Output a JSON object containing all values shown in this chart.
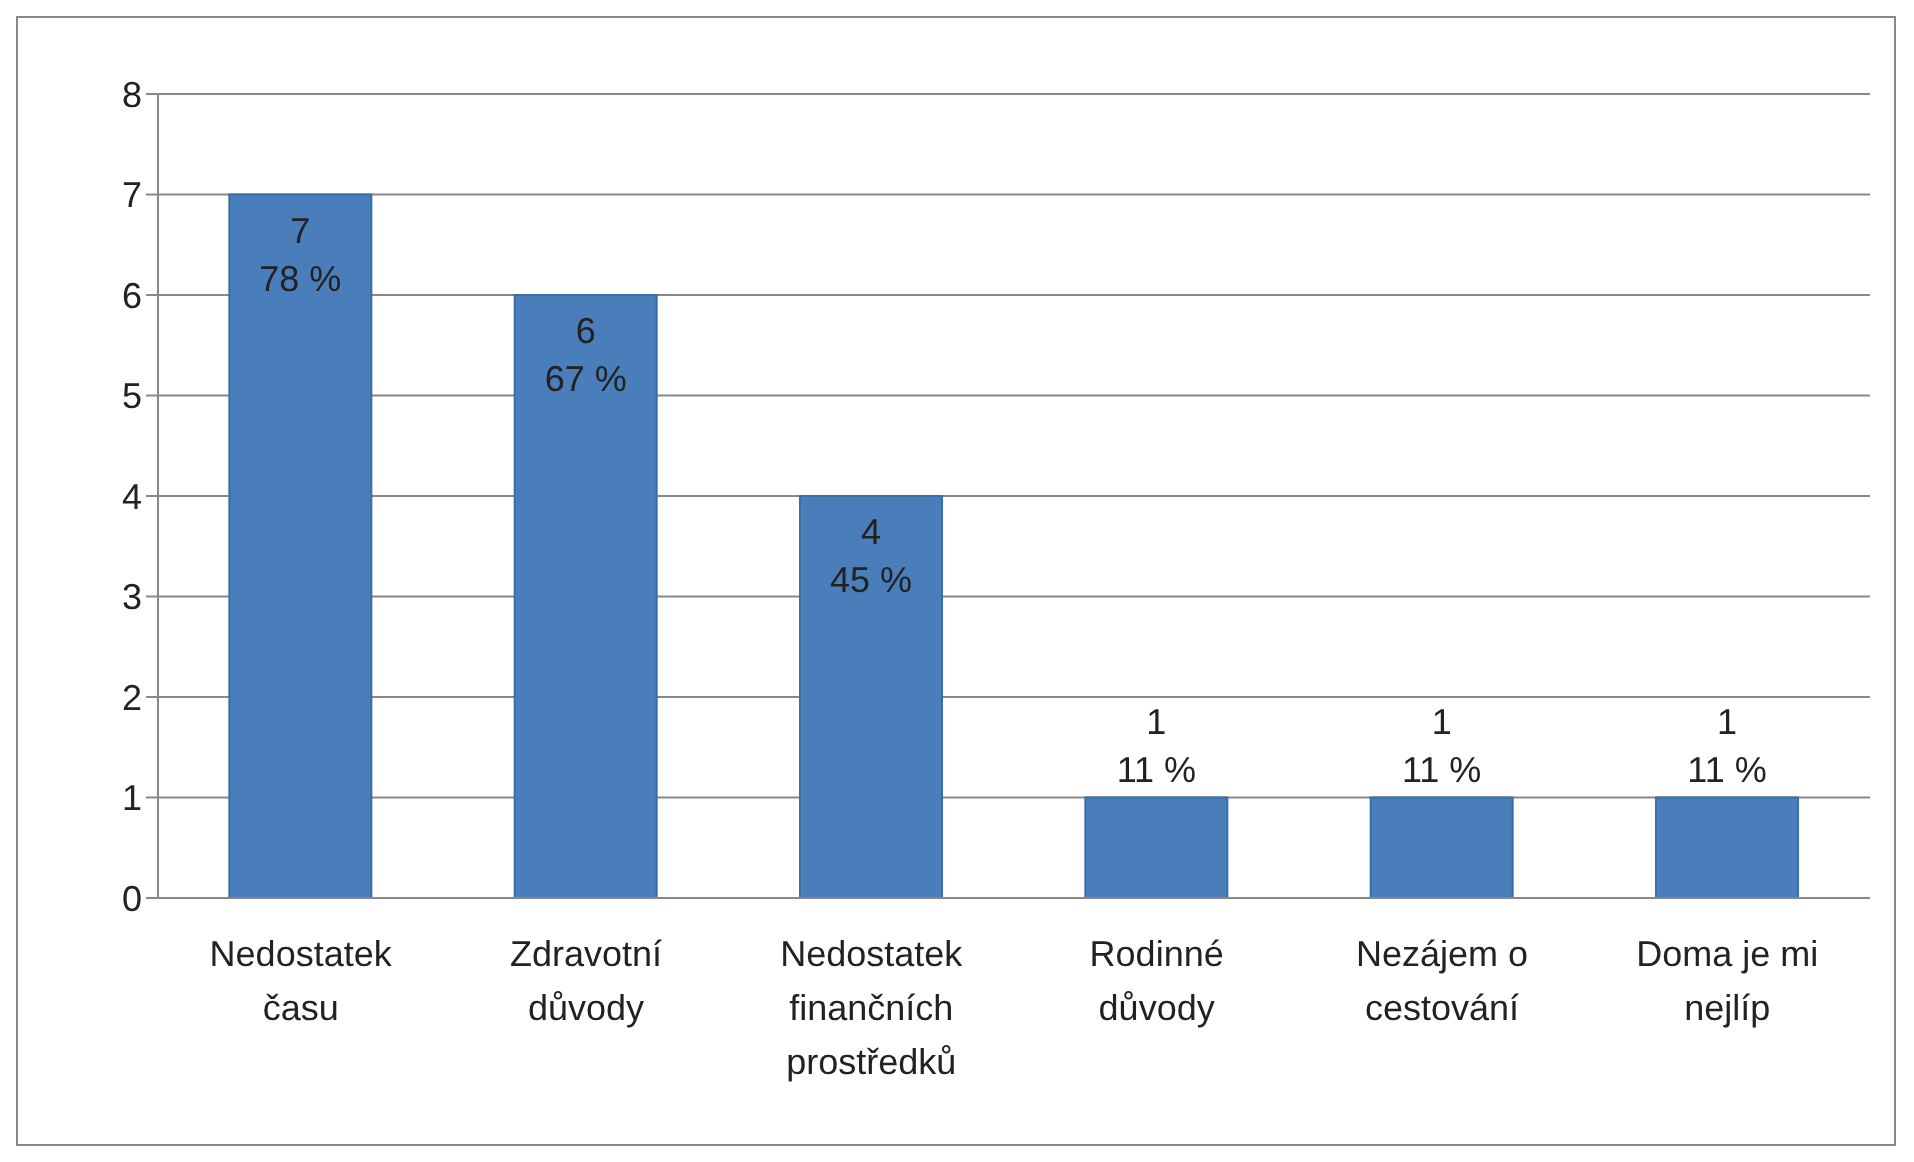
{
  "chart_data": {
    "type": "bar",
    "categories": [
      "Nedostatek času",
      "Zdravotní důvody",
      "Nedostatek finančních prostředků",
      "Rodinné důvody",
      "Nezájem o cestování",
      "Doma je mi nejlíp"
    ],
    "values": [
      7,
      6,
      4,
      1,
      1,
      1
    ],
    "value_labels": [
      "7\n78 %",
      "6\n67 %",
      "4\n45 %",
      "1\n11 %",
      "1\n11 %",
      "1\n11 %"
    ],
    "color": "#4a7ebb",
    "ylim": [
      0,
      8
    ],
    "yticks": [
      0,
      1,
      2,
      3,
      4,
      5,
      6,
      7,
      8
    ],
    "grid": "y"
  }
}
